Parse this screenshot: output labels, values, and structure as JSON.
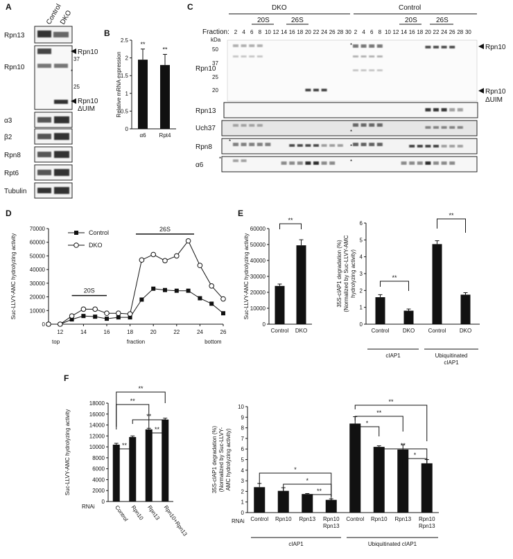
{
  "panels": {
    "A": {
      "letter": "A",
      "lanes": [
        "Control",
        "DKO"
      ],
      "rows": [
        {
          "label": "Rpn13"
        },
        {
          "label": "Rpn10"
        },
        {
          "label": "α3"
        },
        {
          "label": "β2"
        },
        {
          "label": "Rpn8"
        },
        {
          "label": "Rpt6"
        },
        {
          "label": "Tubulin"
        }
      ],
      "markers": [
        "37",
        "25"
      ],
      "arrows": [
        "Rpn10",
        "Rpn10",
        "ΔUIM"
      ],
      "star": "*"
    },
    "B": {
      "letter": "B",
      "star": "**"
    },
    "C": {
      "letter": "C",
      "groups": [
        "DKO",
        "Control"
      ],
      "subgroups": [
        "20S",
        "26S",
        "20S",
        "26S"
      ],
      "fraction_label": "Fraction:",
      "kda_label": "kDa",
      "fractions": [
        "2",
        "4",
        "6",
        "8",
        "10",
        "12",
        "14",
        "16",
        "18",
        "20",
        "22",
        "24",
        "26",
        "28",
        "30"
      ],
      "markers": [
        "50",
        "37",
        "25",
        "20"
      ],
      "rows": [
        "Rpn10",
        "Rpn13",
        "Uch37",
        "Rpn8",
        "α6"
      ],
      "arrows": [
        "Rpn10",
        "Rpn10",
        "ΔUIM"
      ],
      "star": "*"
    },
    "D": {
      "letter": "D",
      "labels": {
        "top": "top",
        "bottom": "bottom"
      },
      "region_20s": "20S",
      "region_26s": "26S"
    },
    "E": {
      "letter": "E",
      "star": "**"
    },
    "F": {
      "letter": "F",
      "rnai_label": "RNAi",
      "star": "**",
      "star1": "*"
    }
  },
  "chart_data": [
    {
      "id": "B",
      "type": "bar",
      "categories": [
        "α6",
        "Rpt4"
      ],
      "values": [
        1.95,
        1.8
      ],
      "errors": [
        0.3,
        0.3
      ],
      "ylabel": "Relative mRNA expression",
      "ylim": [
        0,
        2.5
      ],
      "yticks": [
        "0",
        "0.5",
        "1",
        "1.5",
        "2",
        "2.5"
      ],
      "significance": [
        "**",
        "**"
      ]
    },
    {
      "id": "D",
      "type": "line",
      "x": [
        11,
        12,
        13,
        14,
        15,
        16,
        17,
        18,
        19,
        20,
        21,
        22,
        23,
        24,
        25,
        26
      ],
      "xticks": [
        "12",
        "14",
        "16",
        "18",
        "20",
        "22",
        "24",
        "26"
      ],
      "xlabel": "fraction",
      "ylabel": "Suc-LLVY-AMC hydrolyzing activity",
      "ylim": [
        0,
        70000
      ],
      "yticks": [
        "0",
        "10000",
        "20000",
        "30000",
        "40000",
        "50000",
        "60000",
        "70000"
      ],
      "series": [
        {
          "name": "Control",
          "values": [
            0,
            0,
            3500,
            6000,
            5500,
            4000,
            5000,
            5000,
            18000,
            26000,
            25000,
            24500,
            24500,
            19000,
            15000,
            8000
          ]
        },
        {
          "name": "DKO",
          "values": [
            0,
            0,
            6000,
            11000,
            11000,
            8000,
            8000,
            7500,
            47000,
            51000,
            46500,
            50000,
            61000,
            43000,
            28000,
            18500
          ]
        }
      ],
      "legend": "top-left"
    },
    {
      "id": "E1",
      "type": "bar",
      "categories": [
        "Control",
        "DKO"
      ],
      "values": [
        24000,
        49500
      ],
      "errors": [
        1200,
        3500
      ],
      "ylabel": "Suc-LLVY-AMC hydrolyzing activity",
      "ylim": [
        0,
        60000
      ],
      "yticks": [
        "0",
        "10000",
        "20000",
        "30000",
        "40000",
        "50000",
        "60000"
      ],
      "significance": "**"
    },
    {
      "id": "E2",
      "type": "bar",
      "categories": [
        "Control",
        "DKO",
        "Control",
        "DKO"
      ],
      "groups": [
        "cIAP1",
        "Ubiquitinated cIAP1"
      ],
      "values": [
        1.6,
        0.8,
        4.75,
        1.75
      ],
      "errors": [
        0.15,
        0.1,
        0.2,
        0.12
      ],
      "ylabel": "35S-cIAP1 degradation (%) (Normalized by Suc-LLVY-AMC hydrolyzing activity)",
      "ylim": [
        0,
        6
      ],
      "yticks": [
        "0",
        "1",
        "2",
        "3",
        "4",
        "5",
        "6"
      ],
      "significance": [
        "**",
        "**"
      ]
    },
    {
      "id": "F1",
      "type": "bar",
      "categories": [
        "Control",
        "Rpn10",
        "Rpn13",
        "Rpn10+Rpn13"
      ],
      "values": [
        10400,
        11800,
        13200,
        15000
      ],
      "errors": [
        250,
        200,
        200,
        250
      ],
      "ylabel": "Suc-LLVY-AMC hydrolyzing activity",
      "ylim": [
        0,
        18000
      ],
      "yticks": [
        "0",
        "2000",
        "4000",
        "6000",
        "8000",
        "10000",
        "12000",
        "14000",
        "16000",
        "18000"
      ],
      "significance": [
        "**",
        "**",
        "**",
        "**",
        "**",
        "**"
      ]
    },
    {
      "id": "F2",
      "type": "bar",
      "categories": [
        "Control",
        "Rpn10",
        "Rpn13",
        "Rpn10 Rpn13",
        "Control",
        "Rpn10",
        "Rpn13",
        "Rpn10 Rpn13"
      ],
      "groups": [
        "cIAP1",
        "Ubiquitinated cIAP1"
      ],
      "values": [
        2.4,
        2.05,
        1.75,
        1.2,
        8.4,
        6.2,
        5.95,
        4.65
      ],
      "errors": [
        0.35,
        0.3,
        0.05,
        0.1,
        0.65,
        0.1,
        0.45,
        0.35
      ],
      "ylabel": "35S-cIAP1 degradation (%) (Normalized by Suc-LLVY-AMC hydrolyzing activity)",
      "ylim": [
        0,
        10
      ],
      "yticks": [
        "0",
        "1",
        "2",
        "3",
        "4",
        "5",
        "6",
        "7",
        "8",
        "9",
        "10"
      ],
      "significance": [
        "*",
        "*",
        "**",
        "**",
        "*",
        "**",
        "**",
        "*"
      ]
    }
  ]
}
